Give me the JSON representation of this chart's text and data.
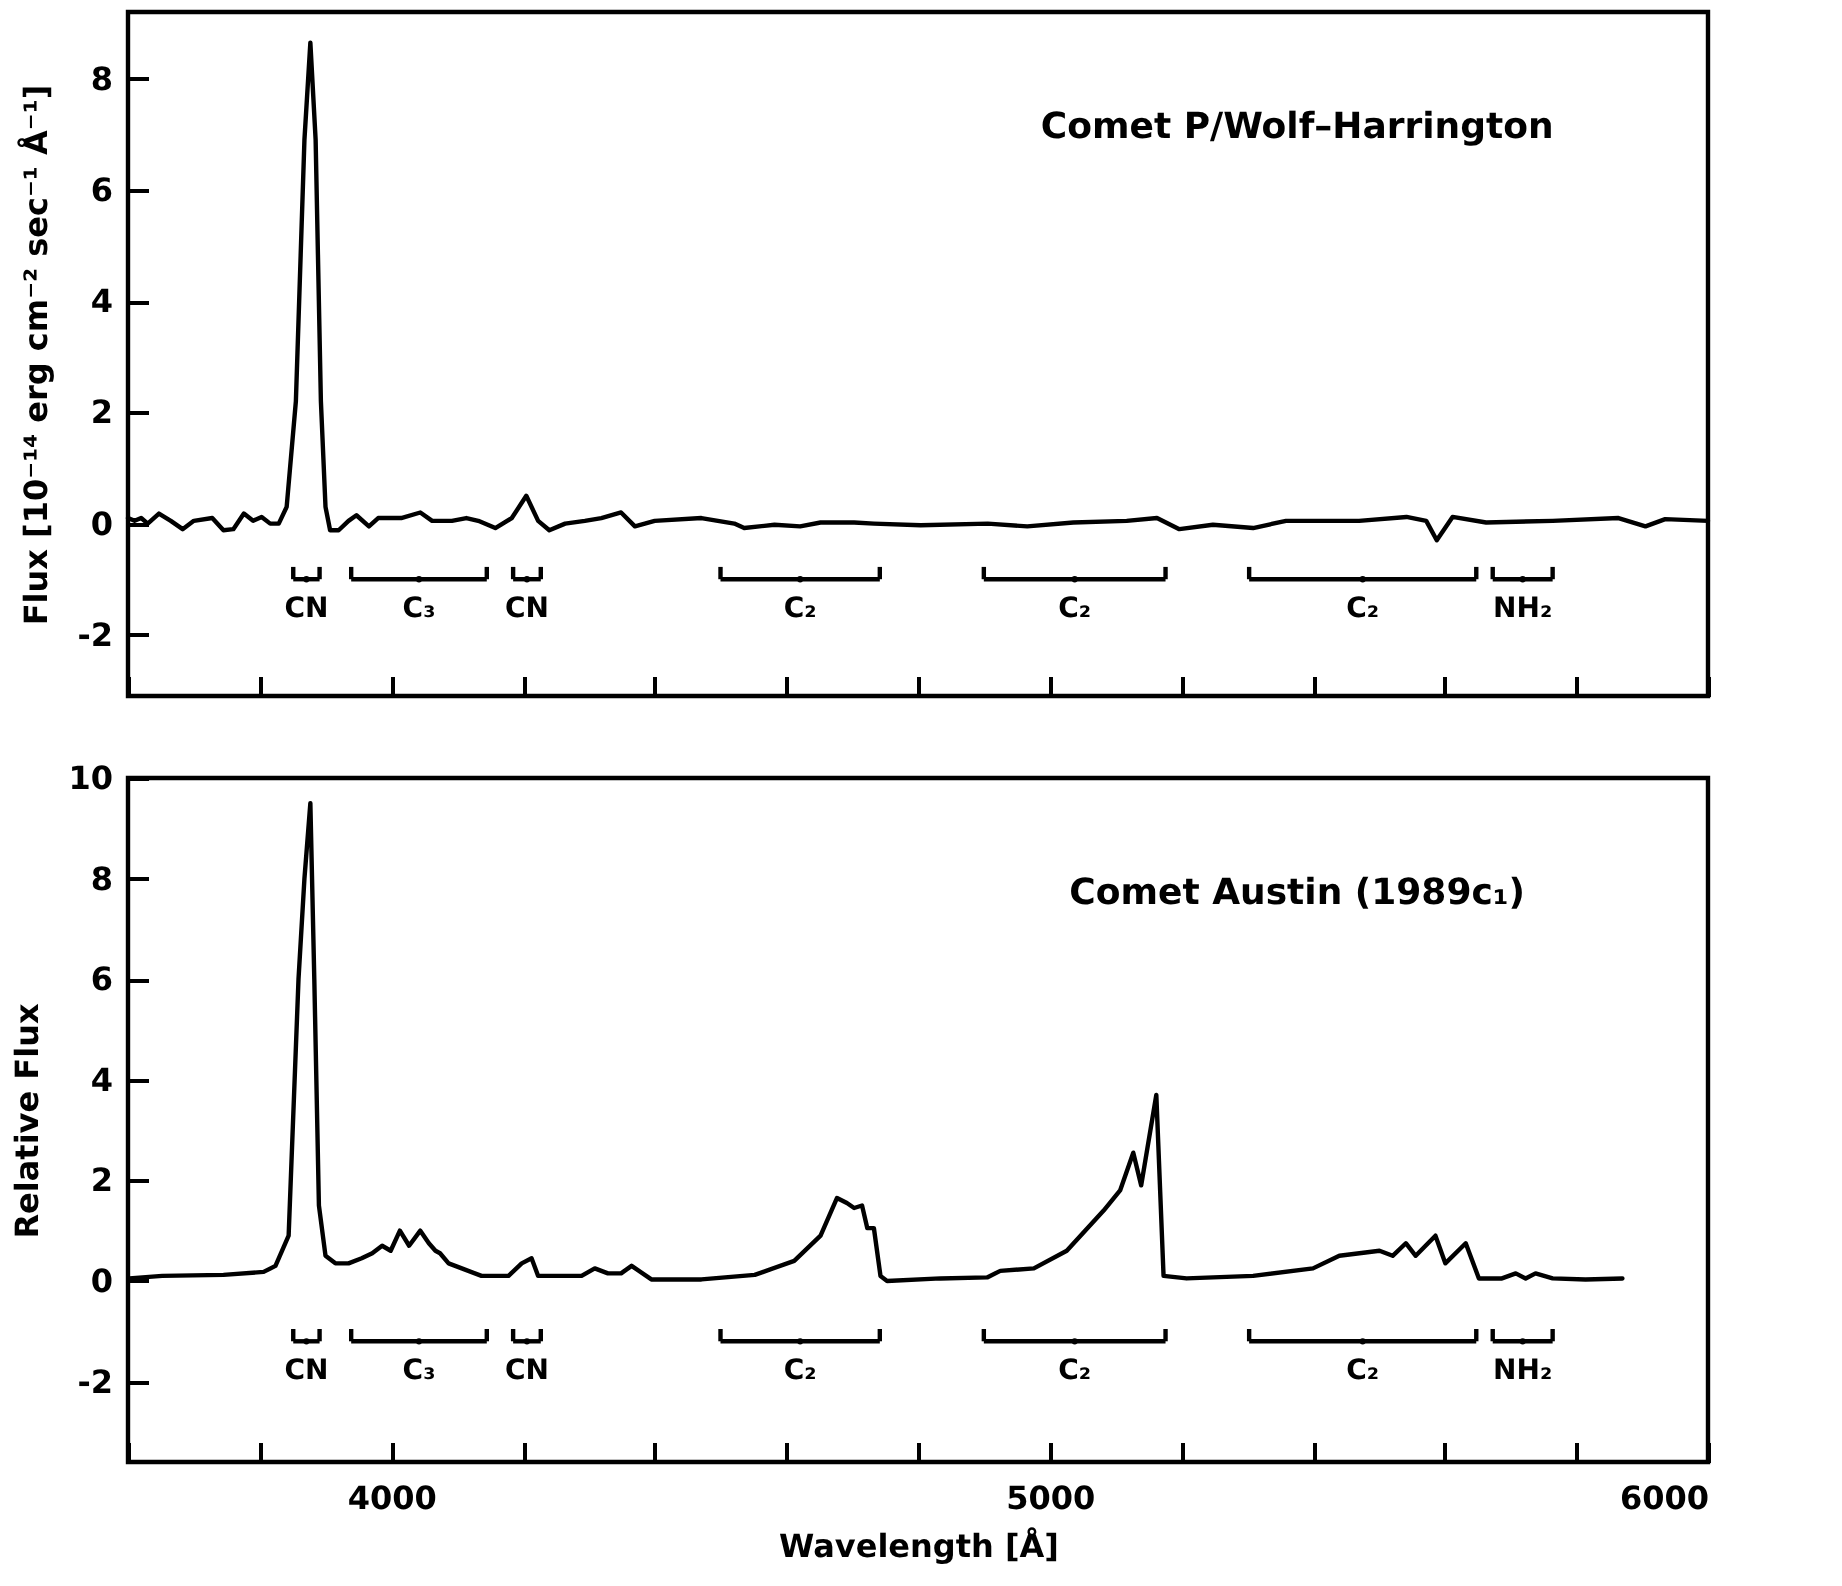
{
  "chart_data": [
    {
      "type": "line",
      "title": "Comet P/Wolf–Harrington",
      "ylabel": "Flux [10⁻¹⁴ erg cm⁻² sec⁻¹ Å⁻¹]",
      "tick_labels": "y",
      "xlim": [
        3600,
        6000
      ],
      "xticks": [
        {
          "value": 3600,
          "label": null
        },
        {
          "value": 3800,
          "label": null
        },
        {
          "value": 4000,
          "label": null
        },
        {
          "value": 4200,
          "label": null
        },
        {
          "value": 4400,
          "label": null
        },
        {
          "value": 4600,
          "label": null
        },
        {
          "value": 4800,
          "label": null
        },
        {
          "value": 5000,
          "label": null
        },
        {
          "value": 5200,
          "label": null
        },
        {
          "value": 5400,
          "label": null
        },
        {
          "value": 5600,
          "label": null
        },
        {
          "value": 5800,
          "label": null
        },
        {
          "value": 6000,
          "label": null
        }
      ],
      "ylim": [
        -3.1,
        9.2
      ],
      "yticks": [
        -2,
        0,
        2,
        4,
        6,
        8
      ],
      "grid": false,
      "marker": "none",
      "line_style": "solid",
      "series": [
        {
          "color": "#000000",
          "x": [
            3600,
            3610,
            3620,
            3630,
            3647,
            3665,
            3683,
            3700,
            3728,
            3745,
            3760,
            3776,
            3790,
            3803,
            3816,
            3829,
            3841,
            3855,
            3868,
            3877,
            3885,
            3893,
            3900,
            3907,
            3920,
            3935,
            3947,
            3966,
            3980,
            4015,
            4044,
            4062,
            4092,
            4114,
            4132,
            4158,
            4183,
            4205,
            4223,
            4240,
            4264,
            4294,
            4319,
            4349,
            4370,
            4400,
            4471,
            4521,
            4536,
            4582,
            4621,
            4652,
            4703,
            4733,
            4804,
            4906,
            4966,
            5036,
            5117,
            5163,
            5197,
            5248,
            5309,
            5359,
            5470,
            5542,
            5572,
            5588,
            5612,
            5663,
            5764,
            5864,
            5905,
            5935,
            6000
          ],
          "values": [
            0.1,
            0.05,
            0.1,
            0.0,
            0.18,
            0.05,
            -0.1,
            0.05,
            0.1,
            -0.12,
            -0.1,
            0.18,
            0.05,
            0.12,
            0.0,
            0.0,
            0.3,
            2.2,
            6.9,
            8.65,
            6.9,
            2.2,
            0.3,
            -0.12,
            -0.12,
            0.05,
            0.15,
            -0.05,
            0.1,
            0.1,
            0.2,
            0.05,
            0.05,
            0.1,
            0.05,
            -0.08,
            0.1,
            0.5,
            0.05,
            -0.12,
            0.0,
            0.05,
            0.1,
            0.2,
            -0.05,
            0.05,
            0.1,
            0.0,
            -0.08,
            -0.02,
            -0.05,
            0.02,
            0.02,
            0.0,
            -0.03,
            0.0,
            -0.05,
            0.02,
            0.05,
            0.1,
            -0.1,
            -0.02,
            -0.08,
            0.05,
            0.05,
            0.12,
            0.05,
            -0.3,
            0.12,
            0.02,
            0.05,
            0.1,
            -0.05,
            0.08,
            0.05
          ]
        },
        {
          "type": "scatter",
          "marker": "circle",
          "color": "#000000",
          "x": [
            3871,
            4042,
            4206,
            4621,
            5038,
            5475.5,
            5718.5
          ],
          "values": [
            -1.0,
            -1.0,
            -1.0,
            -1.0,
            -1.0,
            -1.0,
            -1.0
          ],
          "xerrors": [
            [
              3851,
              3891
            ],
            [
              3939,
              4145
            ],
            [
              4185,
              4227
            ],
            [
              4500,
              4742
            ],
            [
              4900,
              5176
            ],
            [
              5303,
              5648
            ],
            [
              5673,
              5764
            ]
          ],
          "value_labels": [
            "CN",
            "C₃",
            "CN",
            "C₂",
            "C₂",
            "C₂",
            "NH₂"
          ]
        }
      ]
    },
    {
      "type": "line",
      "title": "Comet Austin (1989c₁)",
      "xlabel": "Wavelength [Å]",
      "ylabel": "Relative Flux",
      "xlim": [
        3600,
        6000
      ],
      "xticks": [
        {
          "value": 3600,
          "label": null
        },
        {
          "value": 3800,
          "label": null
        },
        4000,
        {
          "value": 4200,
          "label": null
        },
        {
          "value": 4400,
          "label": null
        },
        {
          "value": 4600,
          "label": null
        },
        {
          "value": 4800,
          "label": null
        },
        5000,
        {
          "value": 5200,
          "label": null
        },
        {
          "value": 5400,
          "label": null
        },
        {
          "value": 5600,
          "label": null
        },
        {
          "value": 5800,
          "label": null
        },
        6000
      ],
      "ylim": [
        -3.6,
        10
      ],
      "yticks": [
        -2,
        0,
        2,
        4,
        6,
        8,
        10
      ],
      "grid": false,
      "marker": "none",
      "line_style": "solid",
      "series": [
        {
          "color": "#000000",
          "x": [
            3602,
            3652,
            3745,
            3806,
            3824,
            3844,
            3859,
            3868,
            3877,
            3883,
            3890,
            3900,
            3915,
            3935,
            3955,
            3971,
            3986,
            3999,
            4013,
            4027,
            4044,
            4057,
            4067,
            4074,
            4087,
            4107,
            4137,
            4178,
            4198,
            4213,
            4223,
            4289,
            4309,
            4329,
            4349,
            4365,
            4395,
            4471,
            4552,
            4612,
            4652,
            4677,
            4692,
            4703,
            4715,
            4723,
            4733,
            4743,
            4753,
            4834,
            4905,
            4925,
            4976,
            5026,
            5082,
            5107,
            5127,
            5139,
            5162,
            5173,
            5208,
            5309,
            5400,
            5440,
            5501,
            5521,
            5541,
            5556,
            5586,
            5601,
            5632,
            5652,
            5687,
            5708,
            5723,
            5738,
            5764,
            5814,
            5870
          ],
          "values": [
            0.05,
            0.1,
            0.12,
            0.18,
            0.3,
            0.9,
            6.0,
            8.0,
            9.5,
            6.0,
            1.5,
            0.5,
            0.35,
            0.35,
            0.45,
            0.55,
            0.7,
            0.6,
            1.0,
            0.7,
            1.0,
            0.75,
            0.6,
            0.55,
            0.35,
            0.25,
            0.1,
            0.1,
            0.35,
            0.45,
            0.1,
            0.1,
            0.25,
            0.15,
            0.15,
            0.3,
            0.03,
            0.03,
            0.12,
            0.4,
            0.9,
            1.65,
            1.55,
            1.45,
            1.5,
            1.05,
            1.05,
            0.1,
            0.0,
            0.05,
            0.07,
            0.2,
            0.25,
            0.6,
            1.4,
            1.8,
            2.55,
            1.9,
            3.7,
            0.1,
            0.05,
            0.1,
            0.25,
            0.5,
            0.6,
            0.5,
            0.75,
            0.5,
            0.9,
            0.35,
            0.75,
            0.05,
            0.05,
            0.15,
            0.05,
            0.15,
            0.05,
            0.03,
            0.05
          ]
        },
        {
          "type": "scatter",
          "marker": "circle",
          "color": "#000000",
          "x": [
            3871,
            4042,
            4206,
            4621,
            5038,
            5475.5,
            5718.5
          ],
          "values": [
            -1.2,
            -1.2,
            -1.2,
            -1.2,
            -1.2,
            -1.2,
            -1.2
          ],
          "xerrors": [
            [
              3851,
              3891
            ],
            [
              3939,
              4145
            ],
            [
              4185,
              4227
            ],
            [
              4500,
              4742
            ],
            [
              4900,
              5176
            ],
            [
              5303,
              5648
            ],
            [
              5673,
              5764
            ]
          ],
          "value_labels": [
            "CN",
            "C₃",
            "CN",
            "C₂",
            "C₂",
            "C₂",
            "NH₂"
          ]
        }
      ]
    }
  ]
}
